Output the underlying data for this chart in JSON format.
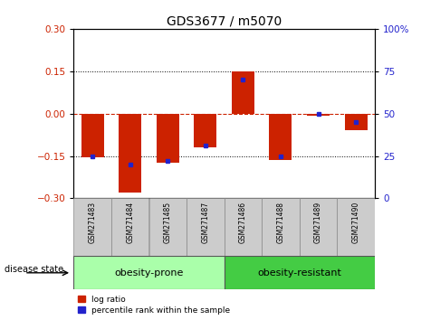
{
  "title": "GDS3677 / m5070",
  "samples": [
    "GSM271483",
    "GSM271484",
    "GSM271485",
    "GSM271487",
    "GSM271486",
    "GSM271488",
    "GSM271489",
    "GSM271490"
  ],
  "log_ratios": [
    -0.155,
    -0.28,
    -0.175,
    -0.118,
    0.15,
    -0.165,
    -0.008,
    -0.06
  ],
  "percentile_ranks": [
    25,
    20,
    22,
    31,
    70,
    25,
    50,
    45
  ],
  "ylim_left": [
    -0.3,
    0.3
  ],
  "ylim_right": [
    0,
    100
  ],
  "yticks_left": [
    -0.3,
    -0.15,
    0,
    0.15,
    0.3
  ],
  "yticks_right": [
    0,
    25,
    50,
    75,
    100
  ],
  "bar_color": "#CC2200",
  "dot_color": "#2222CC",
  "dashed_line_color": "#CC2200",
  "grid_color": "#000000",
  "bg_plot": "#FFFFFF",
  "bg_label": "#CCCCCC",
  "obesity_prone_color": "#AAFFAA",
  "obesity_resistant_color": "#44CC44",
  "obesity_prone_label": "obesity-prone",
  "obesity_resistant_label": "obesity-resistant",
  "disease_state_label": "disease state",
  "legend_log_ratio": "log ratio",
  "legend_percentile": "percentile rank within the sample",
  "bar_width": 0.6,
  "n_prone": 4,
  "n_resistant": 4
}
